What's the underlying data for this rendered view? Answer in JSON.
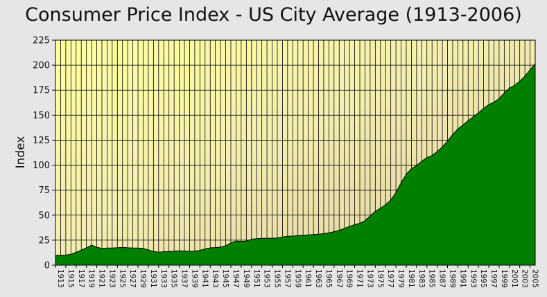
{
  "chart_data": {
    "type": "area",
    "title": "Consumer Price Index - US City Average (1913-2006)",
    "xlabel": "",
    "ylabel": "Index",
    "xlim": [
      1913,
      2006
    ],
    "ylim": [
      0,
      225
    ],
    "yticks": [
      0,
      25,
      50,
      75,
      100,
      125,
      150,
      175,
      200,
      225
    ],
    "xtick_labels": [
      "1913",
      "1915",
      "1917",
      "1919",
      "1921",
      "1923",
      "1925",
      "1927",
      "1929",
      "1931",
      "1933",
      "1935",
      "1937",
      "1939",
      "1941",
      "1943",
      "1945",
      "1947",
      "1949",
      "1951",
      "1953",
      "1955",
      "1957",
      "1959",
      "1961",
      "1963",
      "1965",
      "1967",
      "1969",
      "1971",
      "1973",
      "1975",
      "1977",
      "1979",
      "1981",
      "1983",
      "1985",
      "1987",
      "1989",
      "1991",
      "1993",
      "1995",
      "1997",
      "1999",
      "2001",
      "2003",
      "2005"
    ],
    "grid": true,
    "series": [
      {
        "color": "#008000",
        "x": [
          1913,
          1914,
          1915,
          1916,
          1917,
          1918,
          1919,
          1920,
          1921,
          1922,
          1923,
          1924,
          1925,
          1926,
          1927,
          1928,
          1929,
          1930,
          1931,
          1932,
          1933,
          1934,
          1935,
          1936,
          1937,
          1938,
          1939,
          1940,
          1941,
          1942,
          1943,
          1944,
          1945,
          1946,
          1947,
          1948,
          1949,
          1950,
          1951,
          1952,
          1953,
          1954,
          1955,
          1956,
          1957,
          1958,
          1959,
          1960,
          1961,
          1962,
          1963,
          1964,
          1965,
          1966,
          1967,
          1968,
          1969,
          1970,
          1971,
          1972,
          1973,
          1974,
          1975,
          1976,
          1977,
          1978,
          1979,
          1980,
          1981,
          1982,
          1983,
          1984,
          1985,
          1986,
          1987,
          1988,
          1989,
          1990,
          1991,
          1992,
          1993,
          1994,
          1995,
          1996,
          1997,
          1998,
          1999,
          2000,
          2001,
          2002,
          2003,
          2004,
          2005,
          2006
        ],
        "values": [
          9.9,
          10.0,
          10.1,
          10.9,
          12.8,
          15.1,
          17.3,
          20.0,
          17.9,
          16.8,
          17.1,
          17.1,
          17.5,
          17.7,
          17.4,
          17.1,
          17.1,
          16.7,
          15.2,
          13.7,
          13.0,
          13.4,
          13.7,
          13.9,
          14.4,
          14.1,
          13.9,
          14.0,
          14.7,
          16.3,
          17.3,
          17.6,
          18.0,
          19.5,
          22.3,
          24.1,
          23.8,
          24.1,
          26.0,
          26.5,
          26.7,
          26.9,
          26.8,
          27.2,
          28.1,
          28.9,
          29.1,
          29.6,
          29.9,
          30.2,
          30.6,
          31.0,
          31.5,
          32.4,
          33.4,
          34.8,
          36.7,
          38.8,
          40.5,
          41.8,
          44.4,
          49.3,
          53.8,
          56.9,
          60.6,
          65.2,
          72.6,
          82.4,
          90.9,
          96.5,
          99.6,
          103.9,
          107.6,
          109.6,
          113.6,
          118.3,
          124.0,
          130.7,
          136.2,
          140.3,
          144.5,
          148.2,
          152.4,
          156.9,
          160.5,
          163.0,
          166.6,
          172.2,
          177.1,
          179.9,
          184.0,
          188.9,
          195.3,
          201.6
        ]
      }
    ]
  }
}
